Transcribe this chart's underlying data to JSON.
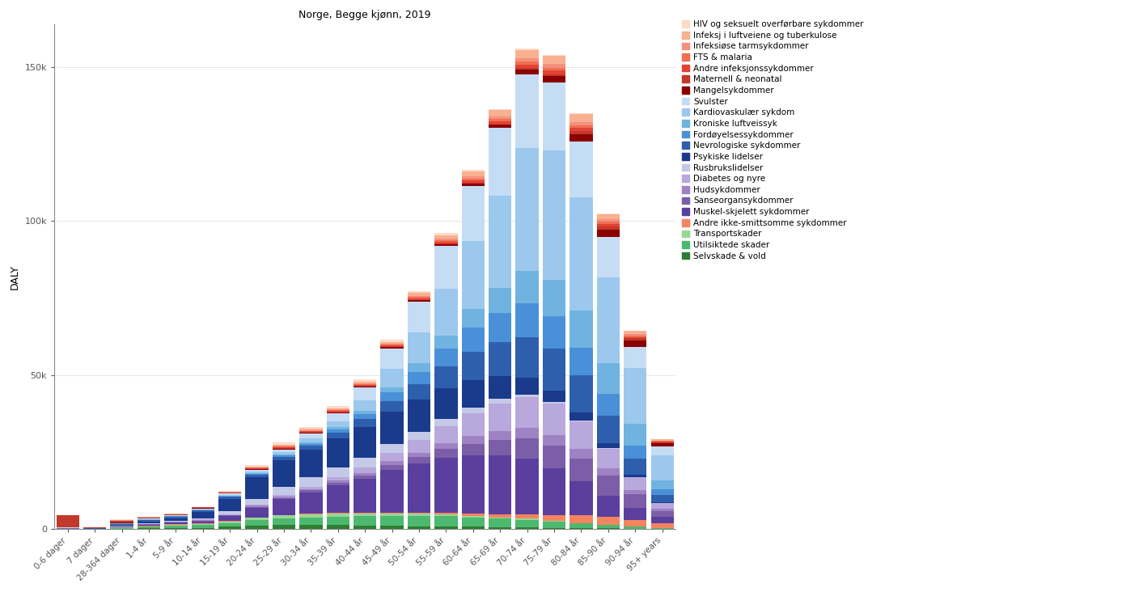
{
  "title": "Norge, Begge kjønn, 2019",
  "ylabel": "DALY",
  "age_groups": [
    "0-6 dager",
    "7 dager",
    "28-364 dager",
    "1-4 år",
    "5-9 år",
    "10-14 år",
    "15-19 år",
    "20-24 år",
    "25-29 år",
    "30-34 år",
    "35-39 år",
    "40-44 år",
    "45-49 år",
    "50-54 år",
    "55-59 år",
    "60-64 år",
    "65-69 år",
    "70-74 år",
    "75-79 år",
    "80-84 år",
    "85-90 år",
    "90-94 år",
    "95+ years"
  ],
  "categories": [
    "Selvskade & vold",
    "Utilsiktede skader",
    "Transportskader",
    "Andre ikke-smittsomme sykdommer",
    "Muskel-skjelett sykdommer",
    "Sanseorgansykdommer",
    "Hudsykdommer",
    "Diabetes og nyre",
    "Rusbrukslidelser",
    "Psykiske lidelser",
    "Nevrologiske sykdommer",
    "Fordøyelsessykdommer",
    "Kroniske luftveissyk",
    "Kardiovaskulær sykdom",
    "Svulster",
    "Mangelsykdommer",
    "Maternell & neonatal",
    "Andre infeksjonssykdommer",
    "FTS & malaria",
    "Infeksiøse tarmsykdommer",
    "Infeksj i luftveiene og tuberkulose",
    "HIV og seksuelt overførbare sykdommer"
  ],
  "colors": [
    "#2E7D32",
    "#4DB870",
    "#98D694",
    "#F4845F",
    "#5B3F9E",
    "#7B5EA7",
    "#9E82C4",
    "#B8A8DC",
    "#C5C9E8",
    "#1A3A8C",
    "#2E5FAD",
    "#4A90D9",
    "#70B3E0",
    "#9DC8EE",
    "#C5DCF5",
    "#8B0000",
    "#C1392B",
    "#E34234",
    "#F07050",
    "#F59080",
    "#F8B090",
    "#FDDBC8"
  ],
  "legend_categories": [
    "HIV og seksuelt overførbare sykdommer",
    "Infeksj i luftveiene og tuberkulose",
    "Infeksiøse tarmsykdommer",
    "FTS & malaria",
    "Andre infeksjonssykdommer",
    "Maternell & neonatal",
    "Mangelsykdommer",
    "Svulster",
    "Kardiovaskulær sykdom",
    "Kroniske luftveissyk",
    "Fordøyelsessykdommer",
    "Nevrologiske sykdommer",
    "Psykiske lidelser",
    "Rusbrukslidelser",
    "Diabetes og nyre",
    "Hudsykdommer",
    "Sanseorgansykdommer",
    "Muskel-skjelett sykdommer",
    "Andre ikke-smittsomme sykdommer",
    "Transportskader",
    "Utilsiktede skader",
    "Selvskade & vold"
  ],
  "legend_colors": [
    "#FDDBC8",
    "#F8B090",
    "#F59080",
    "#F07050",
    "#E34234",
    "#C1392B",
    "#8B0000",
    "#C5DCF5",
    "#9DC8EE",
    "#70B3E0",
    "#4A90D9",
    "#2E5FAD",
    "#1A3A8C",
    "#C5C9E8",
    "#B8A8DC",
    "#9E82C4",
    "#7B5EA7",
    "#5B3F9E",
    "#F4845F",
    "#98D694",
    "#4DB870",
    "#2E7D32"
  ],
  "data": {
    "Selvskade & vold": [
      10,
      5,
      100,
      200,
      300,
      400,
      700,
      1000,
      1200,
      1200,
      1200,
      1100,
      1000,
      900,
      800,
      700,
      600,
      500,
      400,
      250,
      150,
      80,
      40
    ],
    "Utilsiktede skader": [
      20,
      10,
      300,
      600,
      800,
      900,
      1200,
      1800,
      2200,
      2500,
      2800,
      3000,
      3200,
      3300,
      3300,
      3000,
      2800,
      2500,
      2000,
      1600,
      1200,
      700,
      350
    ],
    "Transportskader": [
      5,
      5,
      50,
      100,
      200,
      300,
      500,
      800,
      1000,
      1000,
      1000,
      900,
      800,
      700,
      600,
      500,
      400,
      300,
      200,
      100,
      50,
      20,
      10
    ],
    "Andre ikke-smittsomme sykdommer": [
      50,
      30,
      200,
      200,
      200,
      200,
      200,
      200,
      200,
      200,
      200,
      200,
      300,
      400,
      500,
      700,
      1000,
      1500,
      2000,
      2500,
      2500,
      2000,
      1500
    ],
    "Muskel-skjelett sykdommer": [
      50,
      30,
      100,
      300,
      500,
      700,
      1500,
      3000,
      5000,
      7000,
      9000,
      11000,
      14000,
      16000,
      18000,
      19000,
      19000,
      18000,
      15000,
      11000,
      7000,
      4000,
      2000
    ],
    "Sanseorgansykdommer": [
      10,
      5,
      50,
      100,
      200,
      200,
      300,
      400,
      500,
      600,
      800,
      1100,
      1500,
      2000,
      2800,
      3800,
      5000,
      6500,
      7500,
      7500,
      6500,
      4500,
      2000
    ],
    "Hudsykdommer": [
      10,
      5,
      100,
      100,
      200,
      200,
      200,
      300,
      400,
      500,
      700,
      900,
      1200,
      1500,
      1900,
      2400,
      3000,
      3500,
      3500,
      3000,
      2200,
      1400,
      600
    ],
    "Diabetes og nyre": [
      10,
      5,
      50,
      100,
      100,
      150,
      200,
      300,
      500,
      700,
      1100,
      1700,
      2600,
      4000,
      5500,
      7500,
      9000,
      10000,
      10000,
      9000,
      6500,
      4000,
      1800
    ],
    "Rusbrukslidelser": [
      10,
      5,
      50,
      100,
      150,
      400,
      1000,
      2000,
      2800,
      3000,
      3200,
      3200,
      3000,
      2700,
      2300,
      1800,
      1400,
      900,
      600,
      350,
      180,
      80,
      30
    ],
    "Psykiske lidelser": [
      50,
      30,
      300,
      700,
      900,
      2000,
      4000,
      7000,
      8500,
      9000,
      9500,
      10000,
      10500,
      10500,
      10000,
      9000,
      7500,
      5500,
      3800,
      2500,
      1500,
      700,
      250
    ],
    "Nevrologiske sykdommer": [
      100,
      50,
      300,
      400,
      400,
      500,
      600,
      800,
      1000,
      1300,
      1700,
      2500,
      3500,
      5000,
      7000,
      9000,
      11000,
      13000,
      13500,
      12000,
      9000,
      5500,
      2500
    ],
    "Fordøyelsessykdommer": [
      50,
      20,
      100,
      100,
      150,
      150,
      200,
      300,
      500,
      700,
      1100,
      1700,
      2700,
      4000,
      6000,
      8000,
      9500,
      11000,
      10500,
      9000,
      7000,
      4200,
      1800
    ],
    "Kroniske luftveissyk": [
      10,
      5,
      50,
      100,
      100,
      150,
      200,
      250,
      350,
      500,
      700,
      1100,
      1800,
      2800,
      4200,
      6000,
      8000,
      10500,
      12000,
      12000,
      10000,
      7000,
      3000
    ],
    "Kardiovaskulær sykdom": [
      20,
      10,
      100,
      100,
      100,
      150,
      200,
      400,
      700,
      1200,
      2000,
      3500,
      6000,
      10000,
      15000,
      22000,
      30000,
      40000,
      42000,
      37000,
      28000,
      18000,
      8000
    ],
    "Svulster": [
      20,
      10,
      100,
      200,
      200,
      300,
      500,
      700,
      1000,
      1500,
      2500,
      4000,
      6500,
      10000,
      14000,
      18000,
      22000,
      24000,
      22000,
      18000,
      13000,
      7000,
      3000
    ],
    "Mangelsykdommer": [
      50,
      20,
      200,
      100,
      100,
      100,
      100,
      150,
      200,
      250,
      300,
      350,
      400,
      500,
      600,
      800,
      1000,
      1500,
      2000,
      2500,
      2500,
      2000,
      1000
    ],
    "Maternell & neonatal": [
      4000,
      300,
      500,
      200,
      100,
      100,
      100,
      100,
      150,
      150,
      150,
      150,
      150,
      150,
      150,
      150,
      200,
      400,
      600,
      800,
      900,
      700,
      300
    ],
    "Andre infeksjonssykdommer": [
      10,
      5,
      50,
      50,
      50,
      100,
      150,
      250,
      400,
      400,
      400,
      400,
      400,
      500,
      600,
      800,
      1000,
      1200,
      1200,
      1100,
      800,
      500,
      200
    ],
    "FTS & malaria": [
      5,
      5,
      30,
      30,
      30,
      50,
      80,
      130,
      200,
      200,
      200,
      250,
      300,
      400,
      500,
      600,
      700,
      900,
      1000,
      900,
      700,
      400,
      150
    ],
    "Infeksiøse tarmsykdommer": [
      20,
      10,
      100,
      50,
      50,
      50,
      80,
      130,
      200,
      200,
      200,
      250,
      300,
      400,
      500,
      700,
      900,
      1200,
      1200,
      1100,
      800,
      500,
      200
    ],
    "Infeksj i luftveiene og tuberkulose": [
      50,
      20,
      200,
      100,
      100,
      100,
      150,
      250,
      400,
      400,
      400,
      500,
      650,
      900,
      1200,
      1600,
      2000,
      2700,
      2700,
      2500,
      1800,
      1000,
      400
    ],
    "HIV og seksuelt overførbare sykdommer": [
      5,
      3,
      20,
      20,
      20,
      30,
      300,
      600,
      800,
      700,
      700,
      700,
      700,
      700,
      600,
      500,
      400,
      400,
      300,
      200,
      100,
      50,
      20
    ]
  }
}
